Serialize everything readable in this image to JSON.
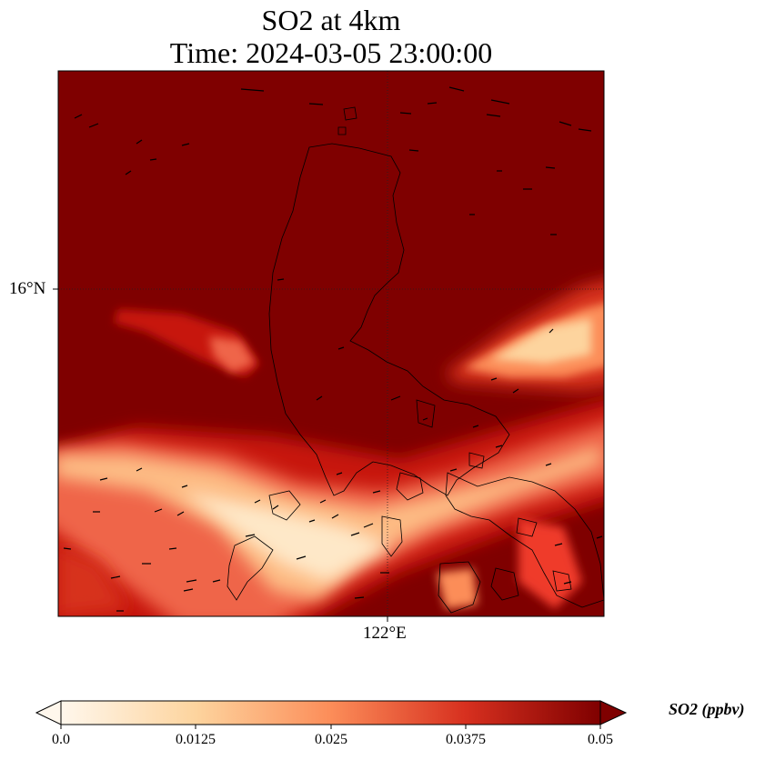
{
  "title": {
    "line1": "SO2 at 4km",
    "line2": "Time: 2024-03-05 23:00:00"
  },
  "map": {
    "lat_label": "16°N",
    "lon_label": "122°E",
    "background_color": "#7f0000",
    "coastline_color": "#000000",
    "gridline_style": "dotted"
  },
  "colorbar": {
    "label": "SO2 (ppbv)",
    "ticks": [
      "0.0",
      "0.0125",
      "0.025",
      "0.0375",
      "0.05"
    ],
    "min": 0.0,
    "max": 0.05,
    "colors": [
      "#fff7ec",
      "#fdd49e",
      "#fc8d59",
      "#d7301f",
      "#7f0000"
    ]
  }
}
